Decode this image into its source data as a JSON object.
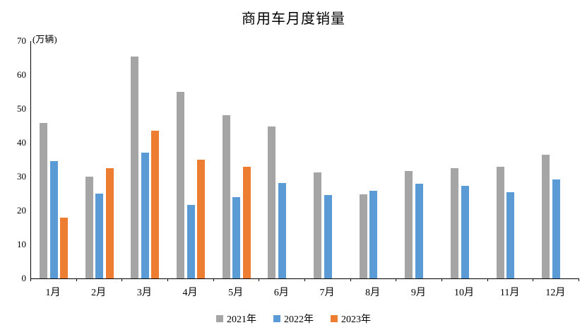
{
  "chart_data": {
    "type": "bar",
    "title": "商用车月度销量",
    "unit_label": "(万辆)",
    "categories": [
      "1月",
      "2月",
      "3月",
      "4月",
      "5月",
      "6月",
      "7月",
      "8月",
      "9月",
      "10月",
      "11月",
      "12月"
    ],
    "series": [
      {
        "name": "2021年",
        "color": "#A5A5A5",
        "values": [
          45.9,
          29.9,
          65.4,
          55.0,
          48.2,
          44.7,
          31.3,
          24.8,
          31.7,
          32.6,
          33.0,
          36.5
        ]
      },
      {
        "name": "2022年",
        "color": "#5B9BD5",
        "values": [
          34.5,
          25.0,
          37.0,
          21.7,
          24.0,
          28.2,
          24.6,
          25.9,
          28.0,
          27.3,
          25.5,
          29.2
        ]
      },
      {
        "name": "2023年",
        "color": "#ED7D31",
        "values": [
          18.0,
          32.4,
          43.6,
          35.0,
          33.0,
          null,
          null,
          null,
          null,
          null,
          null,
          null
        ]
      }
    ],
    "ylim": [
      0,
      70
    ],
    "yticks": [
      0,
      10,
      20,
      30,
      40,
      50,
      60,
      70
    ],
    "xlabel": "",
    "ylabel": "",
    "legend_position": "bottom",
    "grid": false,
    "background_color": "#FFFFFF",
    "axis_color": "#000000"
  }
}
